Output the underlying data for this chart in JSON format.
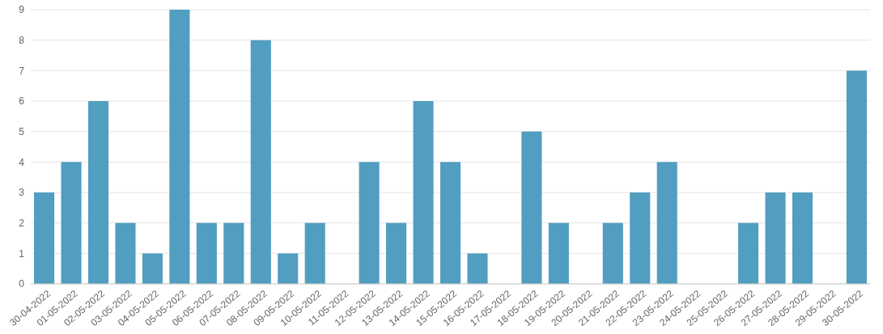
{
  "chart_data": {
    "type": "bar",
    "categories": [
      "30-04-2022",
      "01-05-2022",
      "02-05-2022",
      "03-05-2022",
      "04-05-2022",
      "05-05-2022",
      "06-05-2022",
      "07-05-2022",
      "08-05-2022",
      "09-05-2022",
      "10-05-2022",
      "11-05-2022",
      "12-05-2022",
      "13-05-2022",
      "14-05-2022",
      "15-05-2022",
      "16-05-2022",
      "17-05-2022",
      "18-05-2022",
      "19-05-2022",
      "20-05-2022",
      "21-05-2022",
      "22-05-2022",
      "23-05-2022",
      "24-05-2022",
      "25-05-2022",
      "26-05-2022",
      "27-05-2022",
      "28-05-2022",
      "29-05-2022",
      "30-05-2022"
    ],
    "values": [
      3,
      4,
      6,
      2,
      1,
      9,
      2,
      2,
      8,
      1,
      2,
      0,
      4,
      2,
      6,
      4,
      1,
      0,
      5,
      2,
      0,
      2,
      3,
      4,
      0,
      0,
      2,
      3,
      3,
      0,
      7
    ],
    "color": "#519ec0",
    "ylim": [
      0,
      9
    ],
    "yticks": [
      0,
      1,
      2,
      3,
      4,
      5,
      6,
      7,
      8,
      9
    ],
    "grid": "y"
  }
}
